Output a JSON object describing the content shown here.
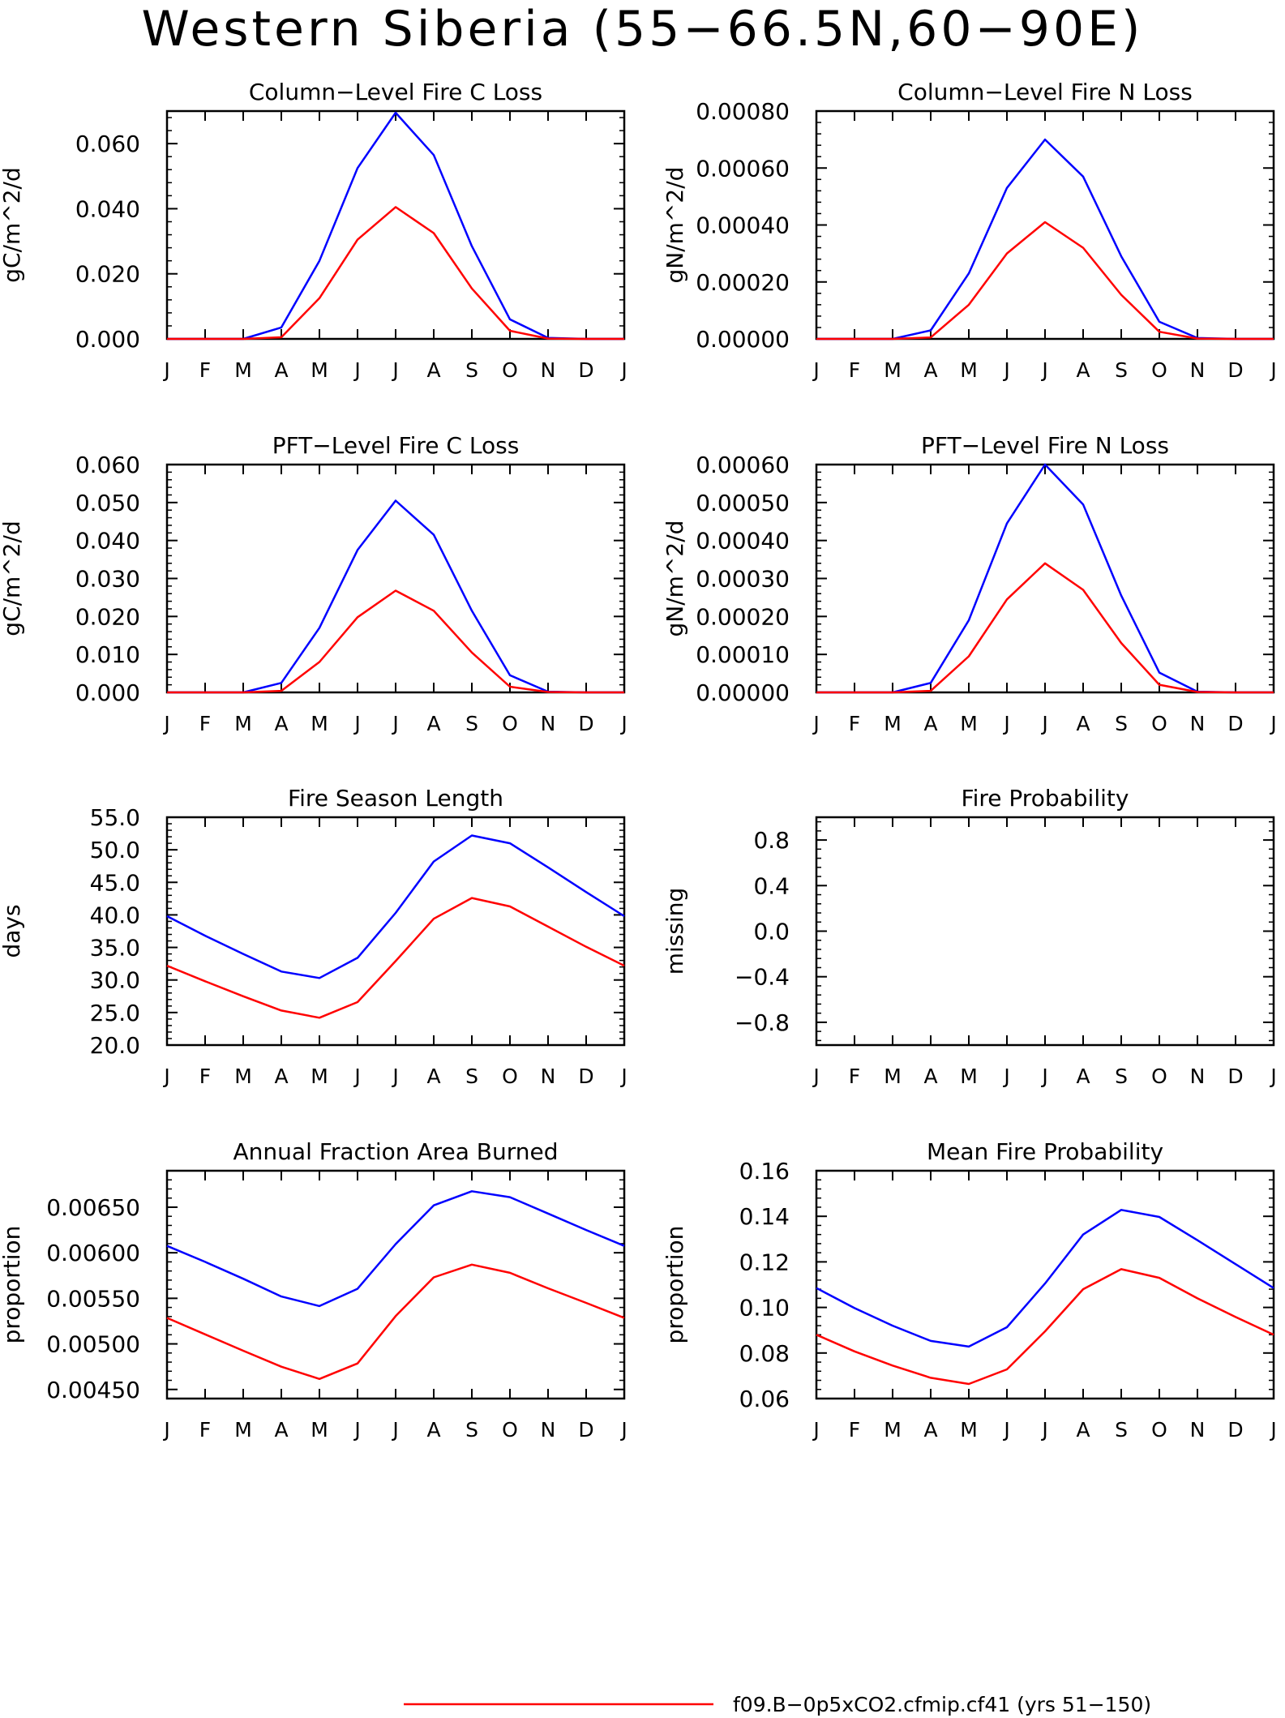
{
  "page": {
    "title": "Western Siberia (55−66.5N,60−90E)",
    "legend_label": "f09.B−0p5xCO2.cfmip.cf41 (yrs 51−150)"
  },
  "colors": {
    "series_a": "#0000ff",
    "series_b": "#ff0000",
    "axis": "#000000"
  },
  "chart_data": [
    {
      "type": "line",
      "title": "Column−Level Fire C Loss",
      "ylabel": "gC/m^2/d",
      "ylim": [
        0,
        0.07
      ],
      "yticks": [
        0,
        0.02,
        0.04,
        0.06
      ],
      "ytick_labels": [
        "0.000",
        "0.020",
        "0.040",
        "0.060"
      ],
      "categories": [
        "J",
        "F",
        "M",
        "A",
        "M",
        "J",
        "J",
        "A",
        "S",
        "O",
        "N",
        "D",
        "J"
      ],
      "series": [
        {
          "color": "#0000ff",
          "values": [
            0,
            0,
            0,
            0.0035,
            0.024,
            0.0525,
            0.0695,
            0.0565,
            0.0285,
            0.006,
            0.0003,
            0,
            0
          ]
        },
        {
          "color": "#ff0000",
          "values": [
            0,
            0,
            0,
            0.0005,
            0.0125,
            0.0305,
            0.0405,
            0.0325,
            0.0155,
            0.0025,
            0.0001,
            0,
            0
          ]
        }
      ]
    },
    {
      "type": "line",
      "title": "Column−Level Fire N Loss",
      "ylabel": "gN/m^2/d",
      "ylim": [
        0,
        0.0008
      ],
      "yticks": [
        0,
        0.0002,
        0.0004,
        0.0006,
        0.0008
      ],
      "ytick_labels": [
        "0.00000",
        "0.00020",
        "0.00040",
        "0.00060",
        "0.00080"
      ],
      "categories": [
        "J",
        "F",
        "M",
        "A",
        "M",
        "J",
        "J",
        "A",
        "S",
        "O",
        "N",
        "D",
        "J"
      ],
      "series": [
        {
          "color": "#0000ff",
          "values": [
            0,
            0,
            0,
            3e-05,
            0.00023,
            0.00053,
            0.0007,
            0.00057,
            0.00029,
            6e-05,
            3e-06,
            0,
            0
          ]
        },
        {
          "color": "#ff0000",
          "values": [
            0,
            0,
            0,
            5e-06,
            0.00012,
            0.0003,
            0.00041,
            0.00032,
            0.000155,
            2.5e-05,
            1e-06,
            0,
            0
          ]
        }
      ]
    },
    {
      "type": "line",
      "title": "PFT−Level Fire C Loss",
      "ylabel": "gC/m^2/d",
      "ylim": [
        0,
        0.06
      ],
      "yticks": [
        0,
        0.01,
        0.02,
        0.03,
        0.04,
        0.05,
        0.06
      ],
      "ytick_labels": [
        "0.000",
        "0.010",
        "0.020",
        "0.030",
        "0.040",
        "0.050",
        "0.060"
      ],
      "categories": [
        "J",
        "F",
        "M",
        "A",
        "M",
        "J",
        "J",
        "A",
        "S",
        "O",
        "N",
        "D",
        "J"
      ],
      "series": [
        {
          "color": "#0000ff",
          "values": [
            0,
            0,
            0,
            0.0025,
            0.017,
            0.0375,
            0.0505,
            0.0415,
            0.0215,
            0.0045,
            0.0002,
            0,
            0
          ]
        },
        {
          "color": "#ff0000",
          "values": [
            0,
            0,
            0,
            0.0004,
            0.008,
            0.0198,
            0.0268,
            0.0215,
            0.0105,
            0.0015,
            0.0001,
            0,
            0
          ]
        }
      ]
    },
    {
      "type": "line",
      "title": "PFT−Level Fire N Loss",
      "ylabel": "gN/m^2/d",
      "ylim": [
        0,
        0.0006
      ],
      "yticks": [
        0,
        0.0001,
        0.0002,
        0.0003,
        0.0004,
        0.0005,
        0.0006
      ],
      "ytick_labels": [
        "0.00000",
        "0.00010",
        "0.00020",
        "0.00030",
        "0.00040",
        "0.00050",
        "0.00060"
      ],
      "categories": [
        "J",
        "F",
        "M",
        "A",
        "M",
        "J",
        "J",
        "A",
        "S",
        "O",
        "N",
        "D",
        "J"
      ],
      "series": [
        {
          "color": "#0000ff",
          "values": [
            0,
            0,
            0,
            2.5e-05,
            0.00019,
            0.000445,
            0.0006,
            0.000495,
            0.000255,
            5.2e-05,
            2e-06,
            0,
            0
          ]
        },
        {
          "color": "#ff0000",
          "values": [
            0,
            0,
            0,
            4e-06,
            9.5e-05,
            0.000245,
            0.00034,
            0.00027,
            0.00013,
            2e-05,
            1e-06,
            0,
            0
          ]
        }
      ]
    },
    {
      "type": "line",
      "title": "Fire Season Length",
      "ylabel": "days",
      "ylim": [
        20,
        55
      ],
      "yticks": [
        20,
        25,
        30,
        35,
        40,
        45,
        50,
        55
      ],
      "ytick_labels": [
        "20.0",
        "25.0",
        "30.0",
        "35.0",
        "40.0",
        "45.0",
        "50.0",
        "55.0"
      ],
      "categories": [
        "J",
        "F",
        "M",
        "A",
        "M",
        "J",
        "J",
        "A",
        "S",
        "O",
        "N",
        "D",
        "J"
      ],
      "series": [
        {
          "color": "#0000ff",
          "values": [
            39.8,
            36.8,
            34.0,
            31.3,
            30.3,
            33.4,
            40.3,
            48.2,
            52.2,
            51.0,
            47.3,
            43.5,
            39.8
          ]
        },
        {
          "color": "#ff0000",
          "values": [
            32.2,
            29.8,
            27.5,
            25.3,
            24.2,
            26.6,
            32.9,
            39.4,
            42.6,
            41.3,
            38.2,
            35.1,
            32.2
          ]
        }
      ]
    },
    {
      "type": "line",
      "title": "Fire Probability",
      "ylabel": "missing",
      "ylim": [
        -1,
        1
      ],
      "yticks": [
        -0.8,
        -0.4,
        0,
        0.4,
        0.8
      ],
      "ytick_labels": [
        "−0.8",
        "−0.4",
        "0.0",
        "0.4",
        "0.8"
      ],
      "categories": [
        "J",
        "F",
        "M",
        "A",
        "M",
        "J",
        "J",
        "A",
        "S",
        "O",
        "N",
        "D",
        "J"
      ],
      "series": []
    },
    {
      "type": "line",
      "title": "Annual Fraction Area Burned",
      "ylabel": "proportion",
      "ylim": [
        0.0044,
        0.0069
      ],
      "yticks": [
        0.0045,
        0.005,
        0.0055,
        0.006,
        0.0065
      ],
      "ytick_labels": [
        "0.00450",
        "0.00500",
        "0.00550",
        "0.00600",
        "0.00650"
      ],
      "categories": [
        "J",
        "F",
        "M",
        "A",
        "M",
        "J",
        "J",
        "A",
        "S",
        "O",
        "N",
        "D",
        "J"
      ],
      "series": [
        {
          "color": "#0000ff",
          "values": [
            0.006075,
            0.0059,
            0.005715,
            0.00552,
            0.005415,
            0.005605,
            0.006095,
            0.00652,
            0.006675,
            0.00661,
            0.00643,
            0.00625,
            0.006075
          ]
        },
        {
          "color": "#ff0000",
          "values": [
            0.005285,
            0.005105,
            0.004925,
            0.00475,
            0.004615,
            0.004785,
            0.005305,
            0.00573,
            0.00587,
            0.00578,
            0.00561,
            0.00545,
            0.005285
          ]
        }
      ]
    },
    {
      "type": "line",
      "title": "Mean Fire Probability",
      "ylabel": "proportion",
      "ylim": [
        0.06,
        0.16
      ],
      "yticks": [
        0.06,
        0.08,
        0.1,
        0.12,
        0.14,
        0.16
      ],
      "ytick_labels": [
        "0.06",
        "0.08",
        "0.10",
        "0.12",
        "0.14",
        "0.16"
      ],
      "categories": [
        "J",
        "F",
        "M",
        "A",
        "M",
        "J",
        "J",
        "A",
        "S",
        "O",
        "N",
        "D",
        "J"
      ],
      "series": [
        {
          "color": "#0000ff",
          "values": [
            0.1085,
            0.0997,
            0.092,
            0.0853,
            0.0828,
            0.0913,
            0.1105,
            0.132,
            0.1428,
            0.1397,
            0.1295,
            0.119,
            0.1085
          ]
        },
        {
          "color": "#ff0000",
          "values": [
            0.088,
            0.0807,
            0.0745,
            0.0691,
            0.0664,
            0.0728,
            0.0895,
            0.108,
            0.1168,
            0.113,
            0.104,
            0.0958,
            0.088
          ]
        }
      ]
    }
  ]
}
